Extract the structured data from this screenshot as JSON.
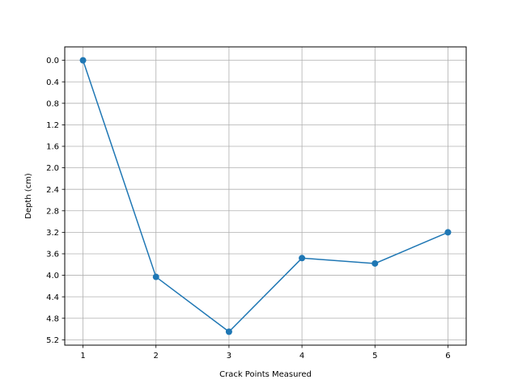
{
  "chart_data": {
    "type": "line",
    "title": "",
    "xlabel": "Crack Points Measured",
    "ylabel": "Depth (cm)",
    "x": [
      1,
      2,
      3,
      4,
      5,
      6
    ],
    "series": [
      {
        "values": [
          0.0,
          4.03,
          5.05,
          3.68,
          3.78,
          3.2
        ],
        "color": "#1f77b4",
        "marker": "circle"
      }
    ],
    "xticks": [
      "1",
      "2",
      "3",
      "4",
      "5",
      "6"
    ],
    "yticks": [
      "0.0",
      "0.4",
      "0.8",
      "1.2",
      "1.6",
      "2.0",
      "2.4",
      "2.8",
      "3.2",
      "3.6",
      "4.0",
      "4.4",
      "4.8",
      "5.2"
    ],
    "xlim": [
      0.75,
      6.25
    ],
    "ylim": [
      5.3,
      -0.25
    ],
    "y_inverted": true,
    "grid": true,
    "grid_color": "#b0b0b0"
  }
}
